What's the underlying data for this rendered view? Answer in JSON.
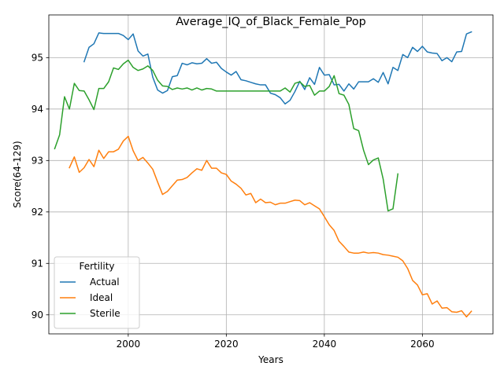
{
  "chart_data": {
    "type": "line",
    "title": "Average_IQ_of_Black_Female_Pop",
    "xlabel": "Years",
    "ylabel": "Score(64-129)",
    "xlim": [
      1983.8,
      2074.4
    ],
    "ylim": [
      89.63,
      95.83
    ],
    "xticks": [
      2000,
      2020,
      2040,
      2060
    ],
    "yticks": [
      90,
      91,
      92,
      93,
      94,
      95
    ],
    "grid": true,
    "legend": {
      "title": "Fertility",
      "placement": "lower-left"
    },
    "series": [
      {
        "name": "Actual",
        "color": "#1f77b4",
        "x": [
          1991,
          1992,
          1993,
          1994,
          1995,
          1996,
          1997,
          1998,
          1999,
          2000,
          2001,
          2002,
          2003,
          2004,
          2005,
          2006,
          2007,
          2008,
          2009,
          2010,
          2011,
          2012,
          2013,
          2014,
          2015,
          2016,
          2017,
          2018,
          2019,
          2020,
          2021,
          2022,
          2023,
          2024,
          2025,
          2026,
          2027,
          2028,
          2029,
          2030,
          2031,
          2032,
          2033,
          2034,
          2035,
          2036,
          2037,
          2038,
          2039,
          2040,
          2041,
          2042,
          2043,
          2044,
          2045,
          2046,
          2047,
          2048,
          2049,
          2050,
          2051,
          2052,
          2053,
          2054,
          2055,
          2056,
          2057,
          2058,
          2059,
          2060,
          2061,
          2062,
          2063,
          2064,
          2065,
          2066,
          2067,
          2068,
          2069,
          2070
        ],
        "y": [
          94.92,
          95.2,
          95.27,
          95.48,
          95.47,
          95.47,
          95.47,
          95.47,
          95.43,
          95.35,
          95.46,
          95.13,
          95.03,
          95.07,
          94.62,
          94.37,
          94.31,
          94.36,
          94.63,
          94.65,
          94.89,
          94.86,
          94.9,
          94.88,
          94.89,
          94.98,
          94.89,
          94.91,
          94.79,
          94.72,
          94.66,
          94.73,
          94.57,
          94.55,
          94.52,
          94.49,
          94.47,
          94.47,
          94.31,
          94.28,
          94.22,
          94.1,
          94.17,
          94.34,
          94.54,
          94.38,
          94.61,
          94.48,
          94.81,
          94.66,
          94.67,
          94.47,
          94.48,
          94.35,
          94.49,
          94.39,
          94.53,
          94.53,
          94.53,
          94.59,
          94.52,
          94.71,
          94.49,
          94.81,
          94.75,
          95.06,
          95.0,
          95.2,
          95.12,
          95.22,
          95.11,
          95.09,
          95.08,
          94.94,
          95.0,
          94.92,
          95.11,
          95.12,
          95.46,
          95.5
        ]
      },
      {
        "name": "Ideal",
        "color": "#ff7f0e",
        "x": [
          1988,
          1989,
          1990,
          1991,
          1992,
          1993,
          1994,
          1995,
          1996,
          1997,
          1998,
          1999,
          2000,
          2001,
          2002,
          2003,
          2004,
          2005,
          2006,
          2007,
          2008,
          2009,
          2010,
          2011,
          2012,
          2013,
          2014,
          2015,
          2016,
          2017,
          2018,
          2019,
          2020,
          2021,
          2022,
          2023,
          2024,
          2025,
          2026,
          2027,
          2028,
          2029,
          2030,
          2031,
          2032,
          2033,
          2034,
          2035,
          2036,
          2037,
          2038,
          2039,
          2040,
          2041,
          2042,
          2043,
          2044,
          2045,
          2046,
          2047,
          2048,
          2049,
          2050,
          2051,
          2052,
          2053,
          2054,
          2055,
          2056,
          2057,
          2058,
          2059,
          2060,
          2061,
          2062,
          2063,
          2064,
          2065,
          2066,
          2067,
          2068,
          2069,
          2070
        ],
        "y": [
          92.86,
          93.07,
          92.77,
          92.86,
          93.02,
          92.88,
          93.2,
          93.04,
          93.17,
          93.17,
          93.22,
          93.38,
          93.47,
          93.19,
          93.0,
          93.06,
          92.95,
          92.83,
          92.58,
          92.34,
          92.4,
          92.51,
          92.62,
          92.63,
          92.67,
          92.76,
          92.84,
          92.81,
          93.0,
          92.85,
          92.85,
          92.76,
          92.73,
          92.6,
          92.54,
          92.46,
          92.33,
          92.36,
          92.18,
          92.25,
          92.18,
          92.19,
          92.14,
          92.17,
          92.17,
          92.2,
          92.23,
          92.22,
          92.14,
          92.18,
          92.12,
          92.06,
          91.91,
          91.75,
          91.64,
          91.43,
          91.33,
          91.22,
          91.2,
          91.2,
          91.22,
          91.2,
          91.21,
          91.2,
          91.17,
          91.16,
          91.14,
          91.12,
          91.05,
          90.9,
          90.67,
          90.58,
          90.39,
          90.41,
          90.21,
          90.27,
          90.13,
          90.14,
          90.06,
          90.05,
          90.08,
          89.96,
          90.07
        ]
      },
      {
        "name": "Sterile",
        "color": "#2ca02c",
        "x": [
          1985,
          1986,
          1987,
          1988,
          1989,
          1990,
          1991,
          1992,
          1993,
          1994,
          1995,
          1996,
          1997,
          1998,
          1999,
          2000,
          2001,
          2002,
          2003,
          2004,
          2005,
          2006,
          2007,
          2008,
          2009,
          2010,
          2011,
          2012,
          2013,
          2014,
          2015,
          2016,
          2017,
          2018,
          2019,
          2020,
          2021,
          2022,
          2023,
          2024,
          2025,
          2026,
          2027,
          2028,
          2029,
          2030,
          2031,
          2032,
          2033,
          2034,
          2035,
          2036,
          2037,
          2038,
          2039,
          2040,
          2041,
          2042,
          2043,
          2044,
          2045,
          2046,
          2047,
          2048,
          2049,
          2050,
          2051,
          2052,
          2053,
          2054,
          2055
        ],
        "y": [
          93.23,
          93.5,
          94.24,
          94.0,
          94.5,
          94.36,
          94.35,
          94.18,
          93.99,
          94.4,
          94.4,
          94.53,
          94.8,
          94.77,
          94.88,
          94.95,
          94.81,
          94.75,
          94.78,
          94.84,
          94.75,
          94.56,
          94.45,
          94.44,
          94.38,
          94.41,
          94.39,
          94.41,
          94.37,
          94.41,
          94.37,
          94.4,
          94.39,
          94.35,
          94.35,
          94.35,
          94.35,
          94.35,
          94.35,
          94.35,
          94.35,
          94.35,
          94.35,
          94.35,
          94.35,
          94.35,
          94.35,
          94.41,
          94.33,
          94.5,
          94.53,
          94.44,
          94.46,
          94.27,
          94.35,
          94.35,
          94.44,
          94.65,
          94.3,
          94.27,
          94.09,
          93.62,
          93.58,
          93.2,
          92.92,
          93.01,
          93.05,
          92.64,
          92.02,
          92.06,
          92.74
        ]
      }
    ]
  }
}
